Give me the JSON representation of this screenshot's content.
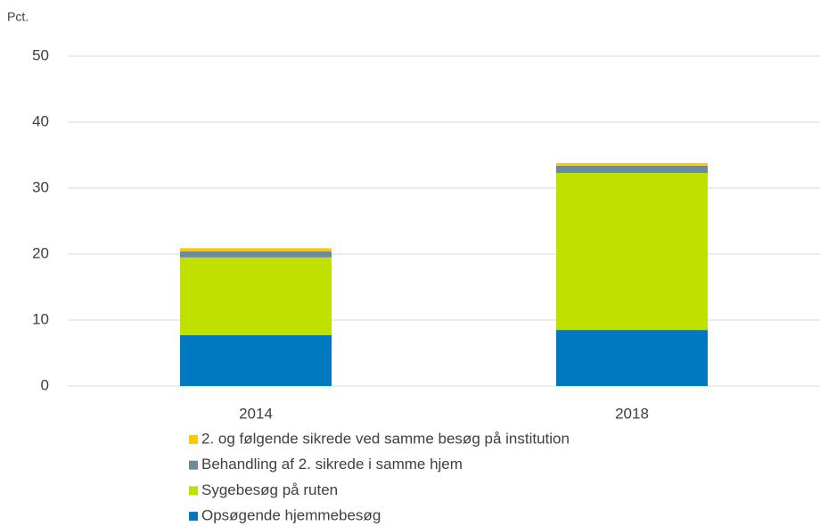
{
  "chart_data": {
    "type": "stacked_bar",
    "y_label": "Pct.",
    "categories": [
      "2014",
      "2018"
    ],
    "series": [
      {
        "name": "Opsøgende hjemmebesøg",
        "color": "#0079c1",
        "values": [
          7.7,
          8.5
        ]
      },
      {
        "name": "Sygebesøg på ruten",
        "color": "#c0e000",
        "values": [
          11.8,
          23.8
        ]
      },
      {
        "name": "Behandling af 2. sikrede i samme hjem",
        "color": "#6a8b9c",
        "values": [
          0.9,
          1.1
        ]
      },
      {
        "name": "2. og følgende sikrede ved samme besøg på institution",
        "color": "#ffc800",
        "values": [
          0.5,
          0.4
        ]
      }
    ],
    "ylim": [
      0,
      50
    ],
    "yticks": [
      0,
      10,
      20,
      30,
      40,
      50
    ],
    "grid": true
  }
}
